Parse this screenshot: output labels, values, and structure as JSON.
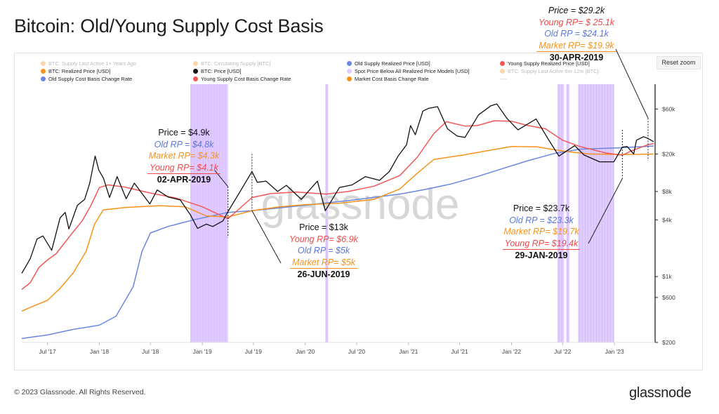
{
  "header": {
    "title": "Bitcoin: Old/Young Supply Cost Basis"
  },
  "controls": {
    "reset_zoom": "Reset zoom"
  },
  "legend": [
    {
      "label": "BTC: Supply Last Active 1+ Years Ago",
      "color": "#f7a348",
      "faded": true
    },
    {
      "label": "BTC: Circulating Supply [BTC]",
      "color": "#f7a348",
      "faded": true
    },
    {
      "label": "Old Supply Realized Price [USD]",
      "color": "#6a86e0",
      "faded": false
    },
    {
      "label": "Young Supply Realized Price [USD]",
      "color": "#f25757",
      "faded": false
    },
    {
      "label": "BTC: Realized Price [USD]",
      "color": "#f7931a",
      "faded": false
    },
    {
      "label": "BTC: Price [USD]",
      "color": "#111111",
      "faded": false
    },
    {
      "label": "Spot Price Below All Realized Price Models [USD]",
      "color": "#e2ccff",
      "faded": false
    },
    {
      "label": "BTC: Supply Last Active 6m-12m [BTC]",
      "color": "#f7a348",
      "faded": true
    },
    {
      "label": "Old Supply Cost Basis Change Rate",
      "color": "#6a86e0",
      "faded": false
    },
    {
      "label": "Young Supply Cost Basis Change Rate",
      "color": "#f25757",
      "faded": false
    },
    {
      "label": "Market Cost Basis Change Rate",
      "color": "#f7931a",
      "faded": false
    },
    {
      "label": "----",
      "color": "#cccccc",
      "faded": true
    }
  ],
  "annotations": [
    {
      "lines": [
        "Price = $4.9k",
        "Old RP = $4.8k",
        "Market RP= $4.3k",
        "Young RP= $4.1k"
      ],
      "date": "02-APR-2019"
    },
    {
      "lines": [
        "Price = $13k",
        "Young RP= $6.9k",
        "Old RP = $5k",
        "Market RP= $5k"
      ],
      "date": "26-JUN-2019"
    },
    {
      "lines": [
        "Price = $23.7k",
        "Old RP = $23.3k",
        "Market RP= $19.7k",
        "Young RP= $19.4k"
      ],
      "date": "29-JAN-2019"
    },
    {
      "lines": [
        "Price = $29.2k",
        "Young RP= $ 25.1k",
        "Old RP = $24.1k",
        "Market RP= $19.9k"
      ],
      "date": "30-APR-2019"
    }
  ],
  "watermark": "glassnode",
  "footer": {
    "copyright": "© 2023 Glassnode. All Rights Reserved.",
    "brand": "glassnode"
  },
  "colors": {
    "price": "#111111",
    "young": "#f25757",
    "old": "#6a86e0",
    "market": "#f7931a",
    "below": "#dcc3ff"
  },
  "chart_data": {
    "type": "line",
    "title": "Bitcoin: Old/Young Supply Cost Basis",
    "y_scale": "log",
    "ylim": [
      200,
      110000
    ],
    "y_ticks": [
      {
        "label": "$60k",
        "value": 60000
      },
      {
        "label": "$20k",
        "value": 20000
      },
      {
        "label": "$8k",
        "value": 8000
      },
      {
        "label": "$4k",
        "value": 4000
      },
      {
        "label": "$1k",
        "value": 1000
      },
      {
        "label": "$600",
        "value": 600
      },
      {
        "label": "$200",
        "value": 200
      }
    ],
    "x_range": [
      "2017-04-01",
      "2023-05-20"
    ],
    "x_ticks": [
      {
        "label": "Jul '17",
        "date": "2017-07-01"
      },
      {
        "label": "Jan '18",
        "date": "2018-01-01"
      },
      {
        "label": "Jul '18",
        "date": "2018-07-01"
      },
      {
        "label": "Jan '19",
        "date": "2019-01-01"
      },
      {
        "label": "Jul '19",
        "date": "2019-07-01"
      },
      {
        "label": "Jan '20",
        "date": "2020-01-01"
      },
      {
        "label": "Jul '20",
        "date": "2020-07-01"
      },
      {
        "label": "Jan '21",
        "date": "2021-01-01"
      },
      {
        "label": "Jul '21",
        "date": "2021-07-01"
      },
      {
        "label": "Jan '22",
        "date": "2022-01-01"
      },
      {
        "label": "Jul '22",
        "date": "2022-07-01"
      },
      {
        "label": "Jan '23",
        "date": "2023-01-01"
      }
    ],
    "series": [
      {
        "name": "BTC: Price [USD]",
        "color": "#111111",
        "points": [
          [
            "2017-04-01",
            1080
          ],
          [
            "2017-05-01",
            1550
          ],
          [
            "2017-05-25",
            2500
          ],
          [
            "2017-06-15",
            2700
          ],
          [
            "2017-07-16",
            1900
          ],
          [
            "2017-08-15",
            4200
          ],
          [
            "2017-09-02",
            4800
          ],
          [
            "2017-09-15",
            3200
          ],
          [
            "2017-10-15",
            5700
          ],
          [
            "2017-11-10",
            6600
          ],
          [
            "2017-11-28",
            9800
          ],
          [
            "2017-12-17",
            19000
          ],
          [
            "2017-12-30",
            13500
          ],
          [
            "2018-01-16",
            11000
          ],
          [
            "2018-02-06",
            6900
          ],
          [
            "2018-03-05",
            11500
          ],
          [
            "2018-04-06",
            6700
          ],
          [
            "2018-05-05",
            9800
          ],
          [
            "2018-06-29",
            5900
          ],
          [
            "2018-07-25",
            8300
          ],
          [
            "2018-09-01",
            7000
          ],
          [
            "2018-10-15",
            6500
          ],
          [
            "2018-11-20",
            4500
          ],
          [
            "2018-12-15",
            3250
          ],
          [
            "2019-01-15",
            3600
          ],
          [
            "2019-02-07",
            3400
          ],
          [
            "2019-03-15",
            3900
          ],
          [
            "2019-04-02",
            4900
          ],
          [
            "2019-05-15",
            8000
          ],
          [
            "2019-06-26",
            13000
          ],
          [
            "2019-07-15",
            10000
          ],
          [
            "2019-08-15",
            10300
          ],
          [
            "2019-09-25",
            8000
          ],
          [
            "2019-10-26",
            9300
          ],
          [
            "2019-12-18",
            6600
          ],
          [
            "2020-02-13",
            10300
          ],
          [
            "2020-03-12",
            5000
          ],
          [
            "2020-05-01",
            8800
          ],
          [
            "2020-06-15",
            9400
          ],
          [
            "2020-08-01",
            11500
          ],
          [
            "2020-09-20",
            10500
          ],
          [
            "2020-10-25",
            13000
          ],
          [
            "2020-11-25",
            19000
          ],
          [
            "2020-12-25",
            25000
          ],
          [
            "2021-01-08",
            40000
          ],
          [
            "2021-01-25",
            32000
          ],
          [
            "2021-02-21",
            57000
          ],
          [
            "2021-03-13",
            61000
          ],
          [
            "2021-04-14",
            63500
          ],
          [
            "2021-05-19",
            37000
          ],
          [
            "2021-06-22",
            31000
          ],
          [
            "2021-07-20",
            30000
          ],
          [
            "2021-09-06",
            52000
          ],
          [
            "2021-10-20",
            65000
          ],
          [
            "2021-11-10",
            68000
          ],
          [
            "2021-12-15",
            48000
          ],
          [
            "2022-01-24",
            36000
          ],
          [
            "2022-03-29",
            47000
          ],
          [
            "2022-05-12",
            28500
          ],
          [
            "2022-06-18",
            19000
          ],
          [
            "2022-08-13",
            24500
          ],
          [
            "2022-09-15",
            19500
          ],
          [
            "2022-11-09",
            16500
          ],
          [
            "2022-12-30",
            16500
          ],
          [
            "2023-01-29",
            23700
          ],
          [
            "2023-02-15",
            24000
          ],
          [
            "2023-03-10",
            20000
          ],
          [
            "2023-03-20",
            28000
          ],
          [
            "2023-04-14",
            30500
          ],
          [
            "2023-04-30",
            29200
          ],
          [
            "2023-05-20",
            27000
          ]
        ]
      },
      {
        "name": "Young Supply Realized Price [USD]",
        "color": "#f25757",
        "points": [
          [
            "2017-04-01",
            730
          ],
          [
            "2017-05-01",
            860
          ],
          [
            "2017-06-01",
            1250
          ],
          [
            "2017-07-01",
            1500
          ],
          [
            "2017-08-01",
            1750
          ],
          [
            "2017-09-01",
            2300
          ],
          [
            "2017-10-01",
            3000
          ],
          [
            "2017-11-01",
            3900
          ],
          [
            "2017-12-01",
            5600
          ],
          [
            "2018-01-01",
            8800
          ],
          [
            "2018-02-01",
            9400
          ],
          [
            "2018-04-01",
            8900
          ],
          [
            "2018-07-01",
            7700
          ],
          [
            "2018-10-01",
            6800
          ],
          [
            "2019-01-01",
            5500
          ],
          [
            "2019-04-02",
            4100
          ],
          [
            "2019-06-26",
            6900
          ],
          [
            "2019-09-01",
            7600
          ],
          [
            "2019-12-01",
            7900
          ],
          [
            "2020-03-15",
            7500
          ],
          [
            "2020-06-01",
            8000
          ],
          [
            "2020-09-01",
            9100
          ],
          [
            "2020-12-01",
            11800
          ],
          [
            "2021-02-01",
            18500
          ],
          [
            "2021-04-01",
            33000
          ],
          [
            "2021-05-15",
            44000
          ],
          [
            "2021-07-20",
            39500
          ],
          [
            "2021-09-01",
            40000
          ],
          [
            "2021-11-01",
            45000
          ],
          [
            "2022-01-01",
            44500
          ],
          [
            "2022-03-01",
            40000
          ],
          [
            "2022-05-01",
            37000
          ],
          [
            "2022-07-01",
            28000
          ],
          [
            "2022-09-01",
            24000
          ],
          [
            "2022-12-01",
            20500
          ],
          [
            "2023-01-29",
            19400
          ],
          [
            "2023-03-01",
            21500
          ],
          [
            "2023-04-30",
            25100
          ],
          [
            "2023-05-20",
            25800
          ]
        ]
      },
      {
        "name": "BTC: Realized Price [USD]",
        "color": "#f7931a",
        "points": [
          [
            "2017-04-01",
            430
          ],
          [
            "2017-05-15",
            490
          ],
          [
            "2017-07-01",
            560
          ],
          [
            "2017-08-15",
            750
          ],
          [
            "2017-10-01",
            1100
          ],
          [
            "2017-11-15",
            1850
          ],
          [
            "2017-12-15",
            3600
          ],
          [
            "2018-01-15",
            5100
          ],
          [
            "2018-04-01",
            5400
          ],
          [
            "2018-08-01",
            5650
          ],
          [
            "2018-11-01",
            5500
          ],
          [
            "2019-01-15",
            4400
          ],
          [
            "2019-04-02",
            4300
          ],
          [
            "2019-06-26",
            5000
          ],
          [
            "2019-10-01",
            5500
          ],
          [
            "2020-01-01",
            5800
          ],
          [
            "2020-05-01",
            6000
          ],
          [
            "2020-09-01",
            6600
          ],
          [
            "2020-12-01",
            8500
          ],
          [
            "2021-02-01",
            12500
          ],
          [
            "2021-04-01",
            17500
          ],
          [
            "2021-07-15",
            19500
          ],
          [
            "2021-10-01",
            21500
          ],
          [
            "2022-01-01",
            24000
          ],
          [
            "2022-04-01",
            23800
          ],
          [
            "2022-07-01",
            21500
          ],
          [
            "2022-10-01",
            20000
          ],
          [
            "2023-01-29",
            19700
          ],
          [
            "2023-04-30",
            19900
          ],
          [
            "2023-05-20",
            20000
          ]
        ]
      },
      {
        "name": "Old Supply Realized Price [USD]",
        "color": "#6a86e0",
        "points": [
          [
            "2017-04-01",
            220
          ],
          [
            "2017-07-01",
            240
          ],
          [
            "2017-10-01",
            275
          ],
          [
            "2018-01-01",
            305
          ],
          [
            "2018-03-01",
            380
          ],
          [
            "2018-05-01",
            780
          ],
          [
            "2018-06-01",
            1850
          ],
          [
            "2018-07-01",
            2900
          ],
          [
            "2018-09-01",
            3400
          ],
          [
            "2018-12-01",
            4000
          ],
          [
            "2019-04-02",
            4800
          ],
          [
            "2019-06-26",
            5000
          ],
          [
            "2019-12-01",
            5600
          ],
          [
            "2020-06-01",
            6400
          ],
          [
            "2020-12-01",
            7500
          ],
          [
            "2021-03-01",
            8400
          ],
          [
            "2021-06-01",
            9600
          ],
          [
            "2021-09-01",
            11500
          ],
          [
            "2021-12-01",
            14000
          ],
          [
            "2022-03-01",
            17000
          ],
          [
            "2022-06-01",
            20200
          ],
          [
            "2022-09-01",
            22500
          ],
          [
            "2023-01-29",
            23300
          ],
          [
            "2023-04-30",
            24100
          ],
          [
            "2023-05-20",
            24300
          ]
        ]
      }
    ],
    "shaded_periods": [
      {
        "name": "Spot Price Below All Realized Price Models [USD]",
        "from": "2018-11-19",
        "to": "2019-04-02"
      },
      {
        "name": "Spot Price Below All Realized Price Models [USD]",
        "from": "2020-03-12",
        "to": "2020-03-22"
      },
      {
        "name": "Spot Price Below All Realized Price Models [USD]",
        "from": "2022-06-13",
        "to": "2022-07-06"
      },
      {
        "name": "Spot Price Below All Realized Price Models [USD]",
        "from": "2022-07-14",
        "to": "2022-07-25"
      },
      {
        "name": "Spot Price Below All Realized Price Models [USD]",
        "from": "2022-08-25",
        "to": "2022-12-31"
      }
    ]
  }
}
